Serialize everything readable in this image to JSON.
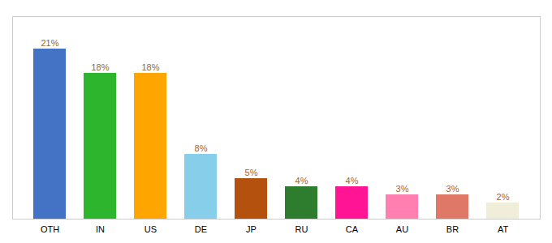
{
  "chart_data": {
    "type": "bar",
    "categories": [
      "OTH",
      "IN",
      "US",
      "DE",
      "JP",
      "RU",
      "CA",
      "AU",
      "BR",
      "AT"
    ],
    "values": [
      21,
      18,
      18,
      8,
      5,
      4,
      4,
      3,
      3,
      2
    ],
    "value_labels": [
      "21%",
      "18%",
      "18%",
      "8%",
      "5%",
      "4%",
      "4%",
      "3%",
      "3%",
      "2%"
    ],
    "colors": [
      "#4472c4",
      "#2db52d",
      "#ffa500",
      "#87ceeb",
      "#b5510e",
      "#2e7d2e",
      "#ff1493",
      "#ff80b0",
      "#e07868",
      "#f0edd8"
    ],
    "data_labels": true,
    "ylim": [
      0,
      25
    ],
    "tick_labels": "x",
    "grid": false
  }
}
